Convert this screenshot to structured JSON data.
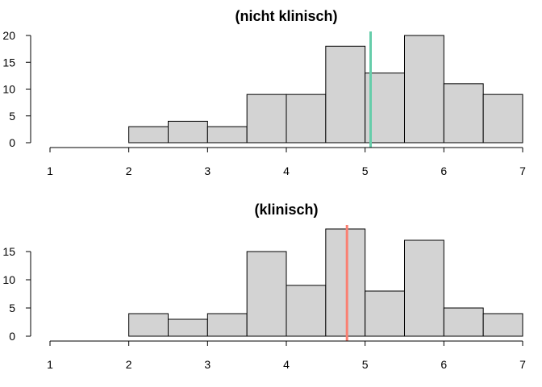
{
  "chart_data": [
    {
      "type": "bar",
      "title": "(nicht klinisch)",
      "xlabel": "",
      "ylabel": "",
      "xlim": [
        1,
        7
      ],
      "ylim": [
        0,
        20
      ],
      "x_ticks": [
        "1",
        "2",
        "3",
        "4",
        "5",
        "6",
        "7"
      ],
      "y_ticks": [
        "0",
        "5",
        "10",
        "15",
        "20"
      ],
      "bins": [
        {
          "from": 2.0,
          "to": 2.5,
          "count": 3
        },
        {
          "from": 2.5,
          "to": 3.0,
          "count": 4
        },
        {
          "from": 3.0,
          "to": 3.5,
          "count": 3
        },
        {
          "from": 3.5,
          "to": 4.0,
          "count": 9
        },
        {
          "from": 4.0,
          "to": 4.5,
          "count": 9
        },
        {
          "from": 4.5,
          "to": 5.0,
          "count": 18
        },
        {
          "from": 5.0,
          "to": 5.5,
          "count": 13
        },
        {
          "from": 5.5,
          "to": 6.0,
          "count": 20
        },
        {
          "from": 6.0,
          "to": 6.5,
          "count": 11
        },
        {
          "from": 6.5,
          "to": 7.0,
          "count": 9
        }
      ],
      "reference_line": {
        "x": 5.07,
        "color": "#66cdaa"
      },
      "grid": false
    },
    {
      "type": "bar",
      "title": "(klinisch)",
      "xlabel": "",
      "ylabel": "",
      "xlim": [
        1,
        7
      ],
      "ylim": [
        0,
        19
      ],
      "x_ticks": [
        "1",
        "2",
        "3",
        "4",
        "5",
        "6",
        "7"
      ],
      "y_ticks": [
        "0",
        "5",
        "10",
        "15"
      ],
      "bins": [
        {
          "from": 2.0,
          "to": 2.5,
          "count": 4
        },
        {
          "from": 2.5,
          "to": 3.0,
          "count": 3
        },
        {
          "from": 3.0,
          "to": 3.5,
          "count": 4
        },
        {
          "from": 3.5,
          "to": 4.0,
          "count": 15
        },
        {
          "from": 4.0,
          "to": 4.5,
          "count": 9
        },
        {
          "from": 4.5,
          "to": 5.0,
          "count": 19
        },
        {
          "from": 5.0,
          "to": 5.5,
          "count": 8
        },
        {
          "from": 5.5,
          "to": 6.0,
          "count": 17
        },
        {
          "from": 6.0,
          "to": 6.5,
          "count": 5
        },
        {
          "from": 6.5,
          "to": 7.0,
          "count": 4
        }
      ],
      "reference_line": {
        "x": 4.77,
        "color": "#fa8072"
      },
      "grid": false
    }
  ]
}
